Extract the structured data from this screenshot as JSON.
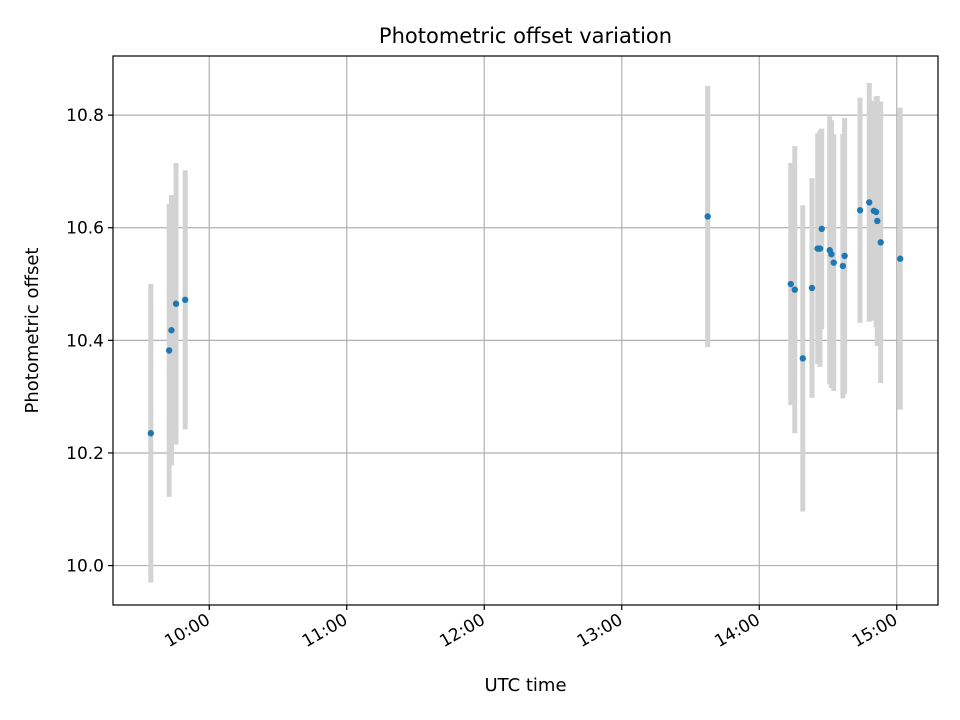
{
  "chart_data": {
    "type": "scatter",
    "title": "Photometric offset variation",
    "xlabel": "UTC time",
    "ylabel": "Photometric offset",
    "x_type": "time",
    "xlim": [
      "09:18",
      "15:18"
    ],
    "ylim": [
      9.93,
      10.905
    ],
    "xticks": [
      "10:00",
      "11:00",
      "12:00",
      "13:00",
      "14:00",
      "15:00"
    ],
    "yticks": [
      "10.0",
      "10.2",
      "10.4",
      "10.6",
      "10.8"
    ],
    "grid": true,
    "colors": {
      "points": "#1f77b4",
      "errorbars": "#d3d3d3",
      "grid": "#b0b0b0"
    },
    "series": [
      {
        "points": [
          {
            "x": "09:34:30",
            "y": 10.235,
            "yerr": 0.265
          },
          {
            "x": "09:42:30",
            "y": 10.382,
            "yerr": 0.26
          },
          {
            "x": "09:43:30",
            "y": 10.418,
            "yerr": 0.24
          },
          {
            "x": "09:45:30",
            "y": 10.465,
            "yerr": 0.25
          },
          {
            "x": "09:49:30",
            "y": 10.472,
            "yerr": 0.23
          },
          {
            "x": "13:37:30",
            "y": 10.62,
            "yerr": 0.232
          },
          {
            "x": "14:13:45",
            "y": 10.5,
            "yerr": 0.215
          },
          {
            "x": "14:15:30",
            "y": 10.49,
            "yerr": 0.255
          },
          {
            "x": "14:19:00",
            "y": 10.368,
            "yerr": 0.272
          },
          {
            "x": "14:23:00",
            "y": 10.493,
            "yerr": 0.195
          },
          {
            "x": "14:25:30",
            "y": 10.563,
            "yerr": 0.205
          },
          {
            "x": "14:26:30",
            "y": 10.563,
            "yerr": 0.21
          },
          {
            "x": "14:27:15",
            "y": 10.598,
            "yerr": 0.178
          },
          {
            "x": "14:30:45",
            "y": 10.56,
            "yerr": 0.238
          },
          {
            "x": "14:31:30",
            "y": 10.553,
            "yerr": 0.238
          },
          {
            "x": "14:32:30",
            "y": 10.538,
            "yerr": 0.228
          },
          {
            "x": "14:36:30",
            "y": 10.532,
            "yerr": 0.235
          },
          {
            "x": "14:37:15",
            "y": 10.55,
            "yerr": 0.245
          },
          {
            "x": "14:44:00",
            "y": 10.631,
            "yerr": 0.2
          },
          {
            "x": "14:48:00",
            "y": 10.645,
            "yerr": 0.212
          },
          {
            "x": "14:50:00",
            "y": 10.63,
            "yerr": 0.195
          },
          {
            "x": "14:51:00",
            "y": 10.628,
            "yerr": 0.205
          },
          {
            "x": "14:51:30",
            "y": 10.612,
            "yerr": 0.222
          },
          {
            "x": "14:53:00",
            "y": 10.574,
            "yerr": 0.25
          },
          {
            "x": "15:01:30",
            "y": 10.545,
            "yerr": 0.268
          }
        ]
      }
    ]
  }
}
